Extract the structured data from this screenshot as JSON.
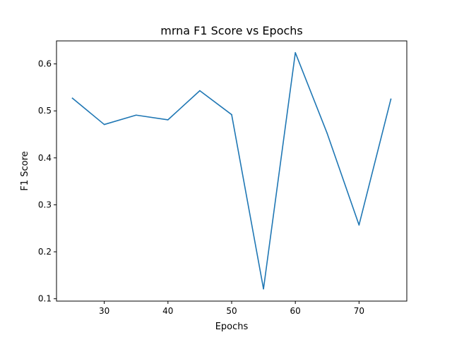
{
  "chart_data": {
    "type": "line",
    "title": "mrna F1 Score vs Epochs",
    "xlabel": "Epochs",
    "ylabel": "F1 Score",
    "x": [
      25,
      30,
      35,
      40,
      45,
      50,
      55,
      60,
      65,
      70,
      75
    ],
    "series": [
      {
        "values": [
          0.527,
          0.471,
          0.491,
          0.481,
          0.543,
          0.492,
          0.121,
          0.624,
          0.452,
          0.257,
          0.525
        ],
        "color": "#1f77b4"
      }
    ],
    "xlim": [
      22.5,
      77.5
    ],
    "ylim": [
      0.095,
      0.649
    ],
    "xticks": [
      30,
      40,
      50,
      60,
      70
    ],
    "yticks": [
      0.1,
      0.2,
      0.3,
      0.4,
      0.5,
      0.6
    ],
    "xtick_labels": [
      "30",
      "40",
      "50",
      "60",
      "70"
    ],
    "ytick_labels": [
      "0.1",
      "0.2",
      "0.3",
      "0.4",
      "0.5",
      "0.6"
    ],
    "grid": false,
    "legend": "none"
  }
}
